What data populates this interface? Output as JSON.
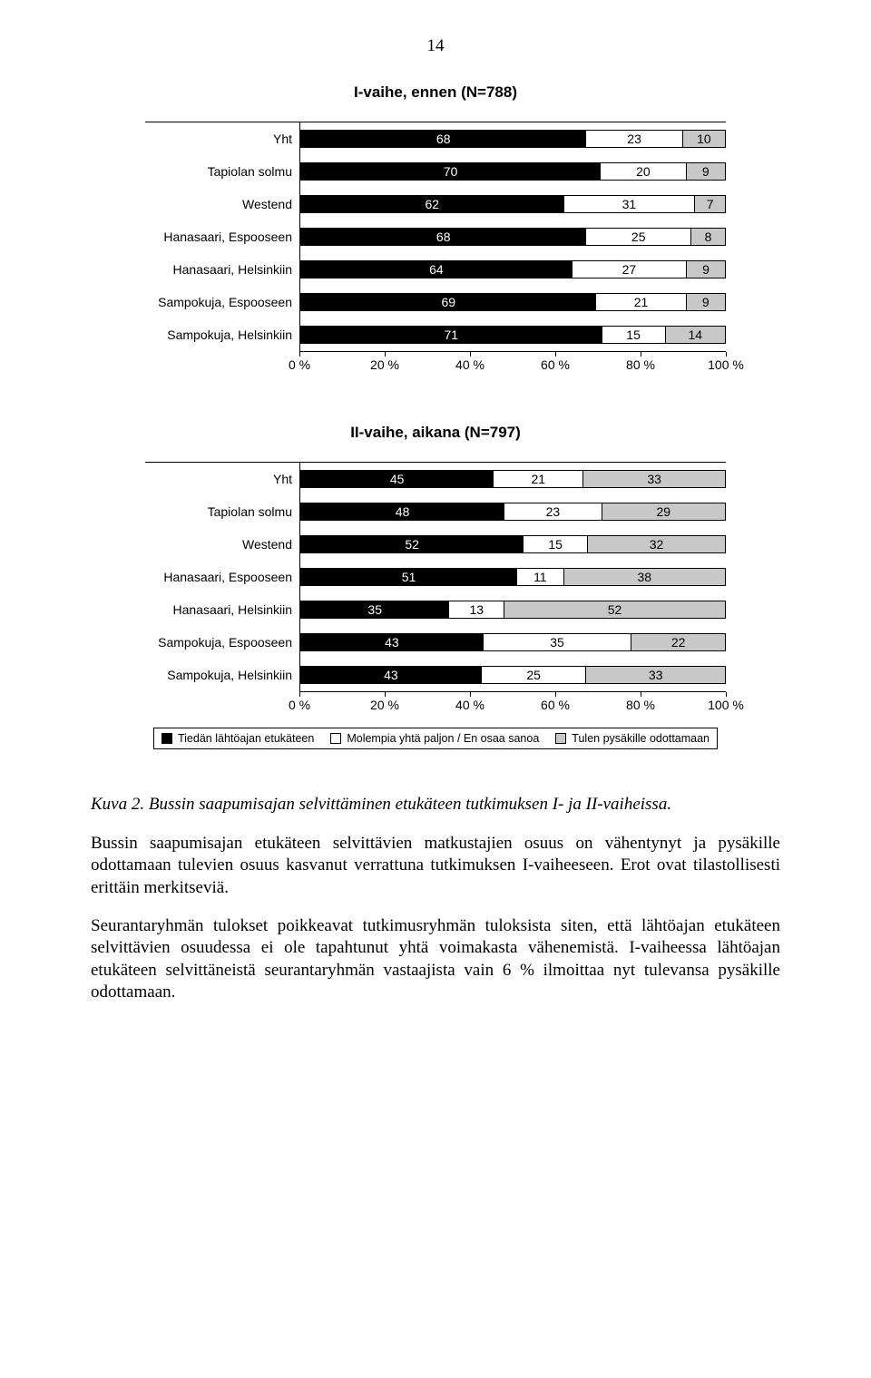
{
  "page_number": "14",
  "colors": {
    "seg_black": "#000000",
    "seg_white": "#ffffff",
    "seg_grey": "#c8c8c8",
    "text_on_black": "#ffffff",
    "text": "#000000"
  },
  "chart1": {
    "type": "stacked-bar-horizontal",
    "title": "I-vaihe, ennen (N=788)",
    "axis": {
      "ticks": [
        0,
        20,
        40,
        60,
        80,
        100
      ],
      "labels": [
        "0 %",
        "20 %",
        "40 %",
        "60 %",
        "80 %",
        "100 %"
      ]
    },
    "segment_colors": [
      "black",
      "white",
      "grey"
    ],
    "rows": [
      {
        "label": "Yht",
        "values": [
          68,
          23,
          10
        ]
      },
      {
        "label": "Tapiolan solmu",
        "values": [
          70,
          20,
          9
        ]
      },
      {
        "label": "Westend",
        "values": [
          62,
          31,
          7
        ]
      },
      {
        "label": "Hanasaari, Espooseen",
        "values": [
          68,
          25,
          8
        ]
      },
      {
        "label": "Hanasaari, Helsinkiin",
        "values": [
          64,
          27,
          9
        ]
      },
      {
        "label": "Sampokuja, Espooseen",
        "values": [
          69,
          21,
          9
        ]
      },
      {
        "label": "Sampokuja, Helsinkiin",
        "values": [
          71,
          15,
          14
        ]
      }
    ]
  },
  "chart2": {
    "type": "stacked-bar-horizontal",
    "title": "II-vaihe, aikana (N=797)",
    "axis": {
      "ticks": [
        0,
        20,
        40,
        60,
        80,
        100
      ],
      "labels": [
        "0 %",
        "20 %",
        "40 %",
        "60 %",
        "80 %",
        "100 %"
      ]
    },
    "segment_colors": [
      "black",
      "white",
      "grey"
    ],
    "rows": [
      {
        "label": "Yht",
        "values": [
          45,
          21,
          33
        ]
      },
      {
        "label": "Tapiolan solmu",
        "values": [
          48,
          23,
          29
        ]
      },
      {
        "label": "Westend",
        "values": [
          52,
          15,
          32
        ]
      },
      {
        "label": "Hanasaari, Espooseen",
        "values": [
          51,
          11,
          38
        ]
      },
      {
        "label": "Hanasaari, Helsinkiin",
        "values": [
          35,
          13,
          52
        ]
      },
      {
        "label": "Sampokuja, Espooseen",
        "values": [
          43,
          35,
          22
        ]
      },
      {
        "label": "Sampokuja, Helsinkiin",
        "values": [
          43,
          25,
          33
        ]
      }
    ]
  },
  "legend": {
    "items": [
      {
        "swatch": "black",
        "label": "Tiedän lähtöajan etukäteen"
      },
      {
        "swatch": "white",
        "label": "Molempia yhtä paljon / En osaa sanoa"
      },
      {
        "swatch": "grey",
        "label": "Tulen pysäkille odottamaan"
      }
    ]
  },
  "caption": "Kuva 2. Bussin saapumisajan selvittäminen etukäteen tutkimuksen I- ja II-vaiheissa.",
  "paragraphs": [
    "Bussin saapumisajan etukäteen selvittävien matkustajien osuus on vähentynyt ja pysäkille odottamaan tulevien osuus kasvanut verrattuna tutkimuksen I-vaiheeseen. Erot ovat tilastollisesti erittäin merkitseviä.",
    "Seurantaryhmän tulokset poikkeavat tutkimusryhmän tuloksista siten, että lähtöajan etukäteen selvittävien osuudessa ei ole tapahtunut yhtä voimakasta vähenemistä. I-vaiheessa lähtöajan etukäteen selvittäneistä seurantaryhmän vastaajista vain 6 % ilmoittaa nyt tulevansa pysäkille odottamaan."
  ]
}
